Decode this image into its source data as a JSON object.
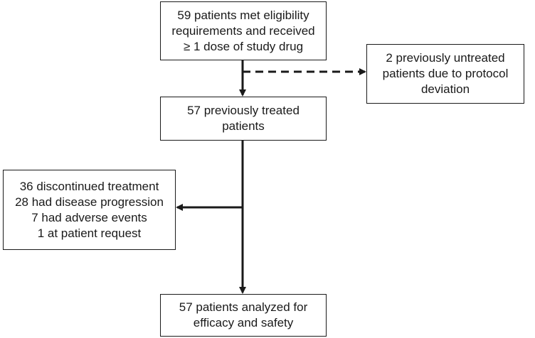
{
  "flowchart": {
    "enrolled": {
      "lines": [
        "59 patients met eligibility",
        "requirements and received",
        "≥ 1 dose of study drug"
      ]
    },
    "excluded": {
      "lines": [
        "2 previously untreated",
        "patients due to protocol",
        "deviation"
      ]
    },
    "treated": {
      "lines": [
        "57 previously treated",
        "patients"
      ]
    },
    "discontinued": {
      "lines": [
        "36 discontinued treatment",
        "28 had disease progression",
        "7 had adverse events",
        "1 at patient request"
      ]
    },
    "analyzed": {
      "lines": [
        "57 patients analyzed for",
        "efficacy and safety"
      ]
    }
  },
  "colors": {
    "line": "#1a1a1a",
    "box_border": "#1a1a1a",
    "background": "#ffffff"
  }
}
